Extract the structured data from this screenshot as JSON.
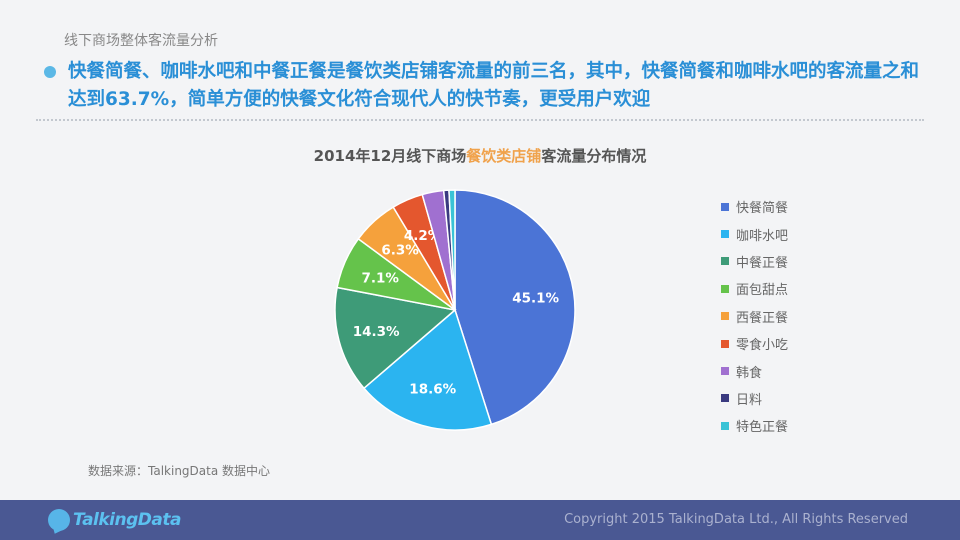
{
  "header": {
    "section_title": "线下商场整体客流量分析",
    "headline_part1": "快餐简餐、咖啡水吧和中餐正餐是餐饮类店铺客流量的前三名，其中，快餐简餐和咖啡水吧的客流量之和达到",
    "headline_highlight": "63.7%",
    "headline_part2": "，简单方便的快餐文化符合现代人的快节奏，更受用户欢迎"
  },
  "chart_data": {
    "type": "pie",
    "title_prefix": "2014年12月线下商场",
    "title_highlight": "餐饮类店铺",
    "title_suffix": "客流量分布情况",
    "title_highlight_color": "#f0a24c",
    "slices": [
      {
        "label": "快餐简餐",
        "value": 45.1,
        "display": "45.1%",
        "color": "#4b74d6"
      },
      {
        "label": "咖啡水吧",
        "value": 18.6,
        "display": "18.6%",
        "color": "#2bb4f0"
      },
      {
        "label": "中餐正餐",
        "value": 14.3,
        "display": "14.3%",
        "color": "#3e9b78"
      },
      {
        "label": "面包甜点",
        "value": 7.1,
        "display": "7.1%",
        "color": "#65c34b"
      },
      {
        "label": "西餐正餐",
        "value": 6.3,
        "display": "6.3%",
        "color": "#f5a13c"
      },
      {
        "label": "零食小吃",
        "value": 4.2,
        "display": "4.2%",
        "color": "#e4572e"
      },
      {
        "label": "韩食",
        "value": 2.9,
        "display": "",
        "color": "#a070d0"
      },
      {
        "label": "日料",
        "value": 0.7,
        "display": "",
        "color": "#3a3a80"
      },
      {
        "label": "特色正餐",
        "value": 0.8,
        "display": "",
        "color": "#39c3d6"
      }
    ],
    "legend_position": "right"
  },
  "source": "数据来源：TalkingData 数据中心",
  "footer": {
    "logo_text": "TalkingData",
    "copyright": "Copyright 2015 TalkingData Ltd., All Rights Reserved"
  }
}
